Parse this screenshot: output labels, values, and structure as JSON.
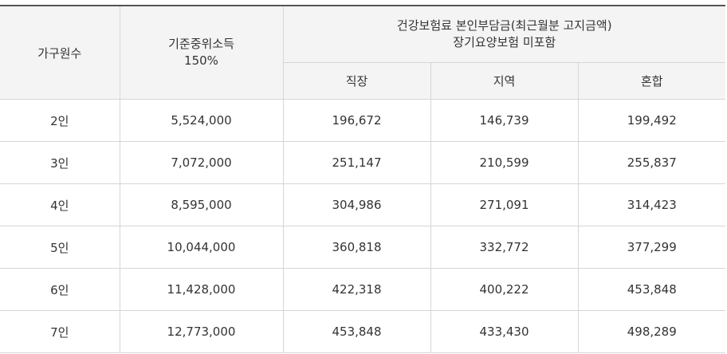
{
  "table": {
    "headers": {
      "household_size": "가구원수",
      "median_income_line1": "기준중위소득",
      "median_income_line2": "150%",
      "premium_line1": "건강보험료 본인부담금(최근월분 고지금액)",
      "premium_line2": "장기요양보험 미포함",
      "sub_employee": "직장",
      "sub_regional": "지역",
      "sub_mixed": "혼합"
    },
    "rows": [
      {
        "household": "2인",
        "income": "5,524,000",
        "employee": "196,672",
        "regional": "146,739",
        "mixed": "199,492"
      },
      {
        "household": "3인",
        "income": "7,072,000",
        "employee": "251,147",
        "regional": "210,599",
        "mixed": "255,837"
      },
      {
        "household": "4인",
        "income": "8,595,000",
        "employee": "304,986",
        "regional": "271,091",
        "mixed": "314,423"
      },
      {
        "household": "5인",
        "income": "10,044,000",
        "employee": "360,818",
        "regional": "332,772",
        "mixed": "377,299"
      },
      {
        "household": "6인",
        "income": "11,428,000",
        "employee": "422,318",
        "regional": "400,222",
        "mixed": "453,848"
      },
      {
        "household": "7인",
        "income": "12,773,000",
        "employee": "453,848",
        "regional": "433,430",
        "mixed": "498,289"
      }
    ]
  }
}
